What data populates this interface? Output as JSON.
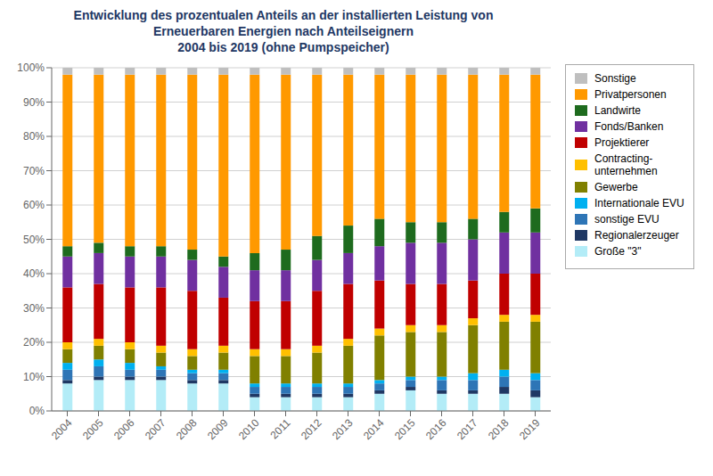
{
  "chart_data": {
    "type": "bar",
    "stacked": true,
    "title": "Entwicklung des prozentualen Anteils an der installierten Leistung von\nErneuerbaren Energien nach Anteilseignern\n2004 bis 2019 (ohne Pumpspeicher)",
    "title_color": "#1f3864",
    "categories": [
      "2004",
      "2005",
      "2006",
      "2007",
      "2008",
      "2009",
      "2010",
      "2011",
      "2012",
      "2013",
      "2014",
      "2015",
      "2016",
      "2017",
      "2018",
      "2019"
    ],
    "series": [
      {
        "name": "Große \"3\"",
        "color": "#b3ecf7",
        "values": [
          8,
          9,
          9,
          9,
          8,
          8,
          4,
          4,
          4,
          4,
          5,
          6,
          5,
          5,
          5,
          4
        ]
      },
      {
        "name": "Regionalerzeuger",
        "color": "#1f3864",
        "values": [
          1,
          1,
          1,
          1,
          1,
          1,
          1,
          1,
          1,
          1,
          1,
          1,
          1,
          1,
          2,
          2
        ]
      },
      {
        "name": "sonstige EVU",
        "color": "#2e75b6",
        "values": [
          3,
          3,
          2,
          2,
          2,
          2,
          2,
          2,
          2,
          2,
          2,
          2,
          3,
          3,
          3,
          3
        ]
      },
      {
        "name": "Internationale EVU",
        "color": "#00b0f0",
        "values": [
          2,
          2,
          2,
          1,
          1,
          1,
          1,
          1,
          1,
          1,
          1,
          1,
          1,
          2,
          2,
          2
        ]
      },
      {
        "name": "Gewerbe",
        "color": "#808000",
        "values": [
          4,
          4,
          4,
          4,
          4,
          5,
          8,
          8,
          9,
          11,
          13,
          13,
          13,
          14,
          14,
          15
        ]
      },
      {
        "name": "Contracting-\nunternehmen",
        "color": "#ffc000",
        "values": [
          2,
          2,
          2,
          2,
          2,
          2,
          2,
          2,
          2,
          2,
          2,
          2,
          2,
          2,
          2,
          2
        ]
      },
      {
        "name": "Projektierer",
        "color": "#c00000",
        "values": [
          16,
          16,
          16,
          17,
          17,
          14,
          14,
          14,
          16,
          16,
          14,
          12,
          12,
          11,
          12,
          12
        ]
      },
      {
        "name": "Fonds/Banken",
        "color": "#7030a0",
        "values": [
          9,
          9,
          9,
          9,
          9,
          9,
          9,
          9,
          9,
          9,
          10,
          12,
          12,
          12,
          12,
          12
        ]
      },
      {
        "name": "Landwirte",
        "color": "#1e6b1e",
        "values": [
          3,
          3,
          3,
          3,
          3,
          3,
          5,
          6,
          7,
          8,
          8,
          6,
          6,
          6,
          6,
          7
        ]
      },
      {
        "name": "Privatpersonen",
        "color": "#ff9900",
        "values": [
          50,
          49,
          50,
          50,
          51,
          53,
          52,
          51,
          47,
          44,
          42,
          43,
          43,
          42,
          40,
          39
        ]
      },
      {
        "name": "Sonstige",
        "color": "#bfbfbf",
        "values": [
          2,
          2,
          2,
          2,
          2,
          2,
          2,
          2,
          2,
          2,
          2,
          2,
          2,
          2,
          2,
          2
        ]
      }
    ],
    "ylim": [
      0,
      100
    ],
    "yticks": [
      {
        "value": 0,
        "label": "0%"
      },
      {
        "value": 10,
        "label": "10%"
      },
      {
        "value": 20,
        "label": "20%"
      },
      {
        "value": 30,
        "label": "30%"
      },
      {
        "value": 40,
        "label": "40%"
      },
      {
        "value": 50,
        "label": "50%"
      },
      {
        "value": 60,
        "label": "60%"
      },
      {
        "value": 70,
        "label": "70%"
      },
      {
        "value": 80,
        "label": "80%"
      },
      {
        "value": 90,
        "label": "90%"
      },
      {
        "value": 100,
        "label": "100%"
      }
    ],
    "grid": true,
    "legend": "right"
  }
}
